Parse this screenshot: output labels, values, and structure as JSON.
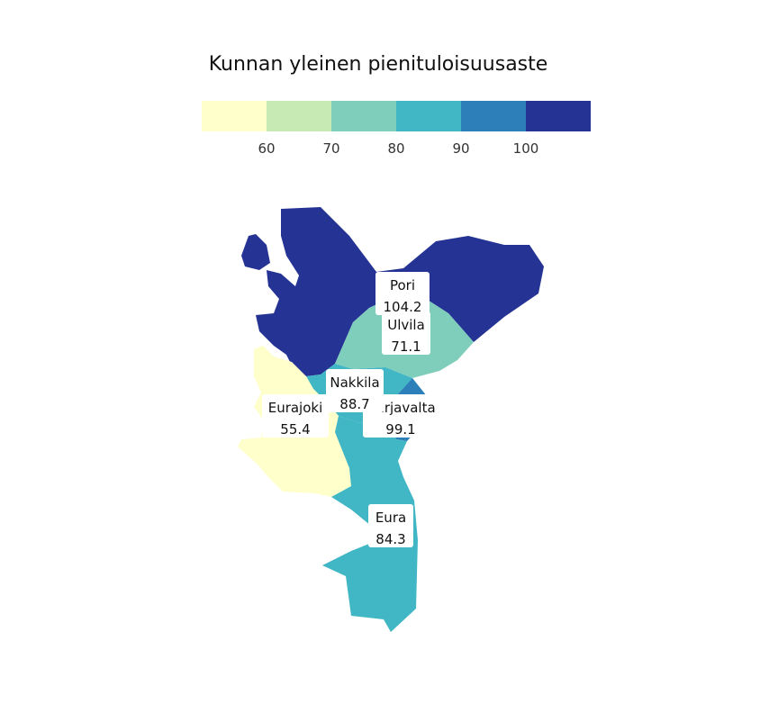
{
  "title": "Kunnan yleinen pienituloisuusaste",
  "legend": {
    "bins": [
      {
        "color": "#ffffcc"
      },
      {
        "color": "#c7e9b4"
      },
      {
        "color": "#7fcdbb"
      },
      {
        "color": "#41b6c4"
      },
      {
        "color": "#2c7fb8"
      },
      {
        "color": "#253494"
      }
    ],
    "ticks": [
      "60",
      "70",
      "80",
      "90",
      "100"
    ]
  },
  "municipalities": [
    {
      "id": "pori",
      "name": "Pori",
      "value": "104.2",
      "color": "#253494"
    },
    {
      "id": "ulvila",
      "name": "Ulvila",
      "value": "71.1",
      "color": "#7fcdbb"
    },
    {
      "id": "nakkila",
      "name": "Nakkila",
      "value": "88.7",
      "color": "#41b6c4"
    },
    {
      "id": "harjavalta",
      "name": "Harjavalta",
      "value": "99.1",
      "color": "#2c7fb8"
    },
    {
      "id": "eurajoki",
      "name": "Eurajoki",
      "value": "55.4",
      "color": "#ffffcc"
    },
    {
      "id": "eura",
      "name": "Eura",
      "value": "84.3",
      "color": "#41b6c4"
    }
  ]
}
